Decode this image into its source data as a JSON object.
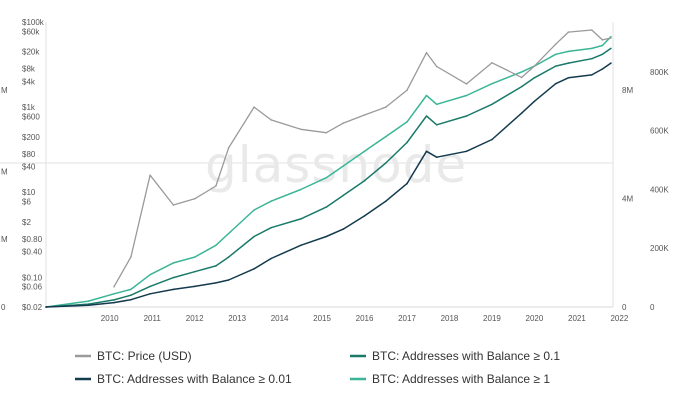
{
  "chart_data": {
    "type": "line",
    "title": "",
    "watermark": "glassnode",
    "x": [
      2009.0,
      2010.0,
      2010.6,
      2011.0,
      2011.45,
      2012.0,
      2012.5,
      2013.0,
      2013.3,
      2013.9,
      2014.3,
      2015.0,
      2015.6,
      2016.0,
      2016.5,
      2017.0,
      2017.5,
      2017.96,
      2018.2,
      2018.9,
      2019.5,
      2020.2,
      2020.5,
      2021.0,
      2021.3,
      2021.85,
      2022.1,
      2022.3
    ],
    "xticks": [
      "2010",
      "2011",
      "2012",
      "2013",
      "2014",
      "2015",
      "2016",
      "2017",
      "2018",
      "2019",
      "2020",
      "2021",
      "2022"
    ],
    "xlim": [
      2009.0,
      2022.35
    ],
    "series": [
      {
        "name": "BTC: Price (USD)",
        "axis": "left-log",
        "color": "#9a9a9a",
        "start_index": 2,
        "values": [
          null,
          null,
          0.06,
          0.3,
          25,
          5,
          7,
          14,
          110,
          1000,
          500,
          300,
          250,
          420,
          650,
          1000,
          2500,
          19000,
          9000,
          3500,
          11000,
          5000,
          9200,
          30000,
          58000,
          65000,
          38000,
          42000
        ]
      },
      {
        "name": "BTC: Addresses with Balance ≥ 0.01",
        "axis": "right",
        "color": "#143a4e",
        "values": [
          0,
          6000,
          15000,
          25000,
          45000,
          60000,
          70000,
          82000,
          92000,
          130000,
          165000,
          210000,
          240000,
          265000,
          310000,
          360000,
          420000,
          530000,
          510000,
          530000,
          570000,
          660000,
          700000,
          760000,
          780000,
          790000,
          810000,
          830000
        ]
      },
      {
        "name": "BTC: Addresses with Balance ≥ 0.1",
        "axis": "right",
        "color": "#1a7a6a",
        "values": [
          0,
          10000,
          24000,
          40000,
          70000,
          100000,
          120000,
          140000,
          170000,
          240000,
          270000,
          300000,
          340000,
          380000,
          430000,
          490000,
          560000,
          650000,
          620000,
          650000,
          690000,
          750000,
          780000,
          820000,
          830000,
          845000,
          860000,
          880000
        ]
      },
      {
        "name": "BTC: Addresses with Balance ≥ 1",
        "axis": "right",
        "color": "#3ab596",
        "values": [
          0,
          20000,
          45000,
          60000,
          110000,
          150000,
          170000,
          210000,
          250000,
          330000,
          360000,
          400000,
          440000,
          480000,
          530000,
          580000,
          630000,
          720000,
          690000,
          720000,
          760000,
          800000,
          820000,
          860000,
          870000,
          880000,
          890000,
          920000
        ]
      }
    ],
    "y_left": {
      "scale": "log",
      "ylim": [
        0.02,
        100000
      ],
      "ticks": [
        {
          "label": "$100k",
          "value": 100000
        },
        {
          "label": "$60k",
          "value": 60000
        },
        {
          "label": "$20k",
          "value": 20000
        },
        {
          "label": "$8k",
          "value": 8000
        },
        {
          "label": "$4k",
          "value": 4000
        },
        {
          "label": "$1k",
          "value": 1000
        },
        {
          "label": "$600",
          "value": 600
        },
        {
          "label": "$200",
          "value": 200
        },
        {
          "label": "$80",
          "value": 80
        },
        {
          "label": "$40",
          "value": 40
        },
        {
          "label": "$10",
          "value": 10
        },
        {
          "label": "$6",
          "value": 6
        },
        {
          "label": "$2",
          "value": 2
        },
        {
          "label": "$0.80",
          "value": 0.8
        },
        {
          "label": "$0.40",
          "value": 0.4
        },
        {
          "label": "$0.10",
          "value": 0.1
        },
        {
          "label": "$0.06",
          "value": 0.06
        },
        {
          "label": "$0.02",
          "value": 0.02
        }
      ]
    },
    "y_right": {
      "ylim": [
        0,
        970000
      ],
      "ticks": [
        {
          "label": "800K",
          "value": 800000
        },
        {
          "label": "600K",
          "value": 600000
        },
        {
          "label": "400K",
          "value": 400000
        },
        {
          "label": "200K",
          "value": 200000
        },
        {
          "label": "0",
          "value": 0
        }
      ]
    },
    "y_mid": {
      "ylim": [
        0,
        10500000
      ],
      "ticks": [
        {
          "label": "8M",
          "value": 8000000
        },
        {
          "label": "4M",
          "value": 4000000
        },
        {
          "label": "0",
          "value": 0
        }
      ]
    },
    "y_edge": {
      "ticks": [
        {
          "label": "M",
          "value": 8000000
        },
        {
          "label": "M",
          "value": 5000000
        },
        {
          "label": "M",
          "value": 2500000
        },
        {
          "label": "0",
          "value": 0
        }
      ]
    },
    "legend": {
      "placement": "bottom",
      "items": [
        {
          "label": "BTC: Price (USD)",
          "color": "#9a9a9a"
        },
        {
          "label": "BTC: Addresses with Balance ≥ 0.1",
          "color": "#1a7a6a"
        },
        {
          "label": "BTC: Addresses with Balance ≥ 0.01",
          "color": "#143a4e"
        },
        {
          "label": "BTC: Addresses with Balance ≥ 1",
          "color": "#3ab596"
        }
      ]
    }
  }
}
